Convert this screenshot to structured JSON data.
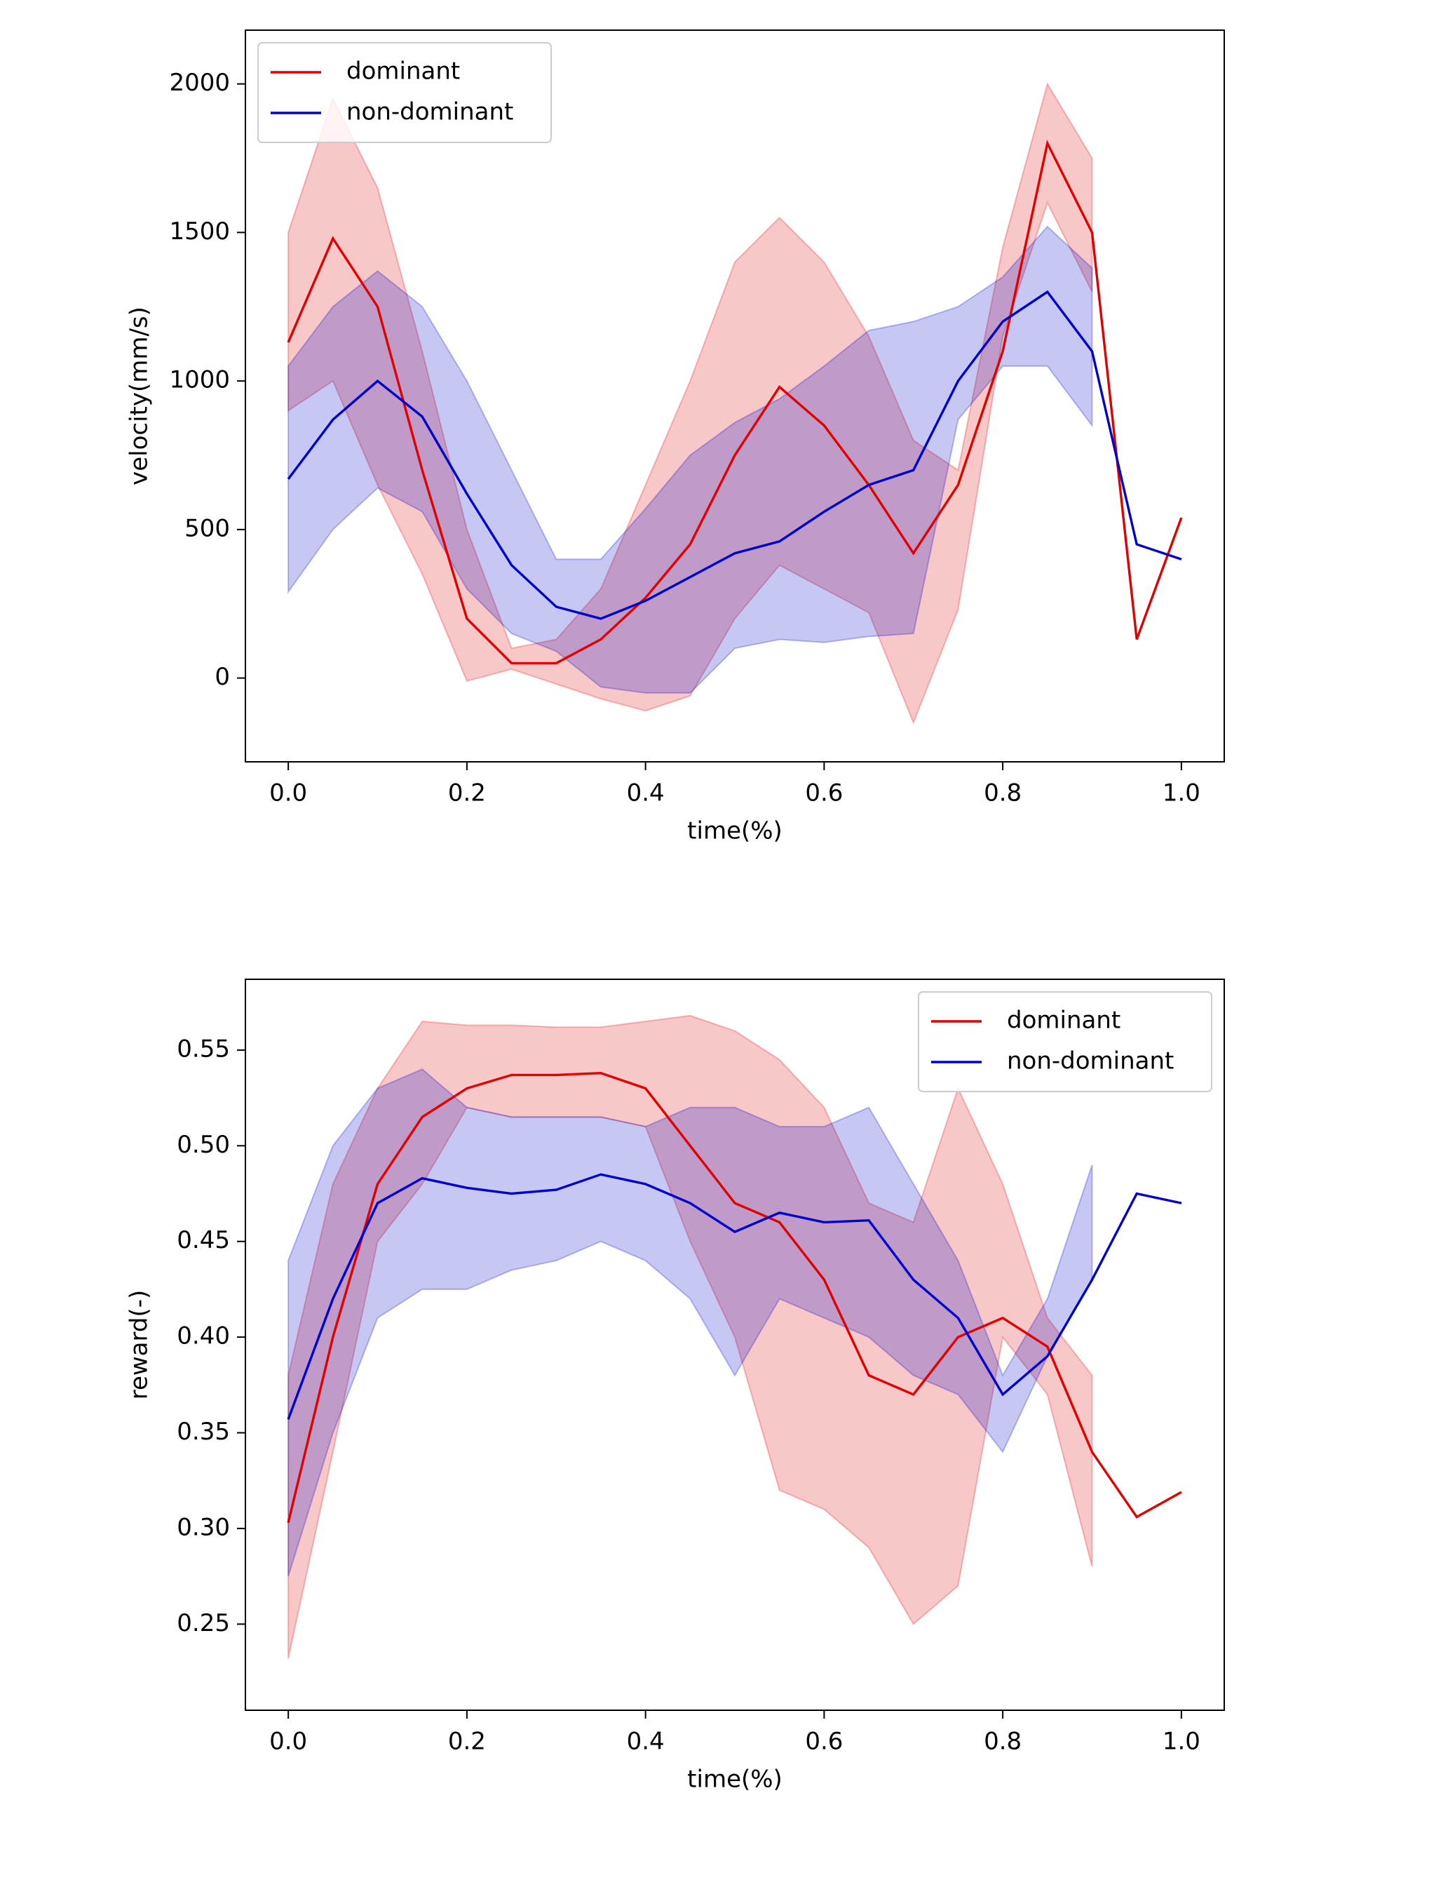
{
  "chart_data": [
    {
      "type": "line",
      "xlabel": "time(%)",
      "ylabel": "velocity(mm/s)",
      "legend": "upper left",
      "x": [
        0,
        0.05,
        0.1,
        0.15,
        0.2,
        0.25,
        0.3,
        0.35,
        0.4,
        0.45,
        0.5,
        0.55,
        0.6,
        0.65,
        0.7,
        0.75,
        0.8,
        0.85,
        0.9,
        0.95,
        1.0
      ],
      "xlim": [
        -0.048,
        1.048
      ],
      "xticks": [
        {
          "value": 0,
          "label": "0.0"
        },
        0.2,
        0.4,
        0.6,
        0.8,
        {
          "value": 1,
          "label": "1.0"
        }
      ],
      "ylim": [
        -282,
        2181
      ],
      "yticks": [
        0,
        500,
        1000,
        1500,
        2000
      ],
      "series": [
        {
          "name": "dominant",
          "color": "#e00000",
          "values": [
            1130,
            1480,
            1250,
            700,
            200,
            50,
            50,
            130,
            270,
            450,
            750,
            980,
            850,
            650,
            420,
            650,
            1100,
            1800,
            1500,
            130,
            540
          ],
          "lower": [
            900,
            1000,
            650,
            350,
            -10,
            30,
            -20,
            -70,
            -110,
            -60,
            200,
            380,
            300,
            220,
            -150,
            230,
            1150,
            1600,
            1300,
            null,
            null
          ],
          "upper": [
            1500,
            1950,
            1650,
            1100,
            500,
            100,
            130,
            300,
            650,
            1000,
            1400,
            1550,
            1400,
            1150,
            800,
            700,
            1450,
            2000,
            1750,
            null,
            null
          ]
        },
        {
          "name": "non-dominant",
          "color": "#0000cc",
          "values": [
            670,
            870,
            1000,
            880,
            620,
            380,
            240,
            200,
            260,
            340,
            420,
            460,
            560,
            650,
            700,
            1000,
            1200,
            1300,
            1100,
            450,
            400
          ],
          "lower": [
            290,
            500,
            640,
            560,
            300,
            150,
            90,
            -30,
            -50,
            -50,
            100,
            130,
            120,
            140,
            150,
            870,
            1050,
            1050,
            850,
            null,
            null
          ],
          "upper": [
            1050,
            1250,
            1370,
            1250,
            1000,
            700,
            400,
            400,
            570,
            750,
            860,
            940,
            1050,
            1170,
            1200,
            1250,
            1350,
            1520,
            1380,
            null,
            null
          ]
        }
      ]
    },
    {
      "type": "line",
      "xlabel": "time(%)",
      "ylabel": "reward(-)",
      "legend": "upper right",
      "x": [
        0,
        0.05,
        0.1,
        0.15,
        0.2,
        0.25,
        0.3,
        0.35,
        0.4,
        0.45,
        0.5,
        0.55,
        0.6,
        0.65,
        0.7,
        0.75,
        0.8,
        0.85,
        0.9,
        0.95,
        1.0
      ],
      "xlim": [
        -0.048,
        1.048
      ],
      "xticks": [
        {
          "value": 0,
          "label": "0.0"
        },
        0.2,
        0.4,
        0.6,
        0.8,
        {
          "value": 1,
          "label": "1.0"
        }
      ],
      "ylim": [
        0.205,
        0.587
      ],
      "yticks": [
        0.25,
        {
          "value": 0.3,
          "label": "0.30"
        },
        0.35,
        {
          "value": 0.4,
          "label": "0.40"
        },
        0.45,
        {
          "value": 0.5,
          "label": "0.50"
        },
        0.55
      ],
      "series": [
        {
          "name": "dominant",
          "color": "#e00000",
          "values": [
            0.303,
            0.4,
            0.48,
            0.515,
            0.53,
            0.537,
            0.537,
            0.538,
            0.53,
            0.5,
            0.47,
            0.46,
            0.43,
            0.38,
            0.37,
            0.4,
            0.41,
            0.395,
            0.34,
            0.306,
            0.319
          ],
          "lower": [
            0.232,
            0.34,
            0.45,
            0.48,
            0.52,
            0.515,
            0.515,
            0.515,
            0.51,
            0.45,
            0.4,
            0.32,
            0.31,
            0.29,
            0.25,
            0.27,
            0.4,
            0.37,
            0.28,
            null,
            null
          ],
          "upper": [
            0.38,
            0.48,
            0.53,
            0.565,
            0.563,
            0.563,
            0.562,
            0.562,
            0.565,
            0.568,
            0.56,
            0.545,
            0.52,
            0.47,
            0.46,
            0.53,
            0.48,
            0.41,
            0.38,
            null,
            null
          ]
        },
        {
          "name": "non-dominant",
          "color": "#0000cc",
          "values": [
            0.357,
            0.42,
            0.47,
            0.483,
            0.478,
            0.475,
            0.477,
            0.485,
            0.48,
            0.47,
            0.455,
            0.465,
            0.46,
            0.461,
            0.43,
            0.41,
            0.37,
            0.39,
            0.43,
            0.475,
            0.47
          ],
          "lower": [
            0.275,
            0.35,
            0.41,
            0.425,
            0.425,
            0.435,
            0.44,
            0.45,
            0.44,
            0.42,
            0.38,
            0.42,
            0.41,
            0.4,
            0.38,
            0.37,
            0.34,
            0.39,
            0.43,
            null,
            null
          ],
          "upper": [
            0.44,
            0.5,
            0.53,
            0.54,
            0.52,
            0.515,
            0.515,
            0.515,
            0.51,
            0.52,
            0.52,
            0.51,
            0.51,
            0.52,
            0.48,
            0.44,
            0.38,
            0.42,
            0.49,
            null,
            null
          ]
        }
      ]
    }
  ]
}
